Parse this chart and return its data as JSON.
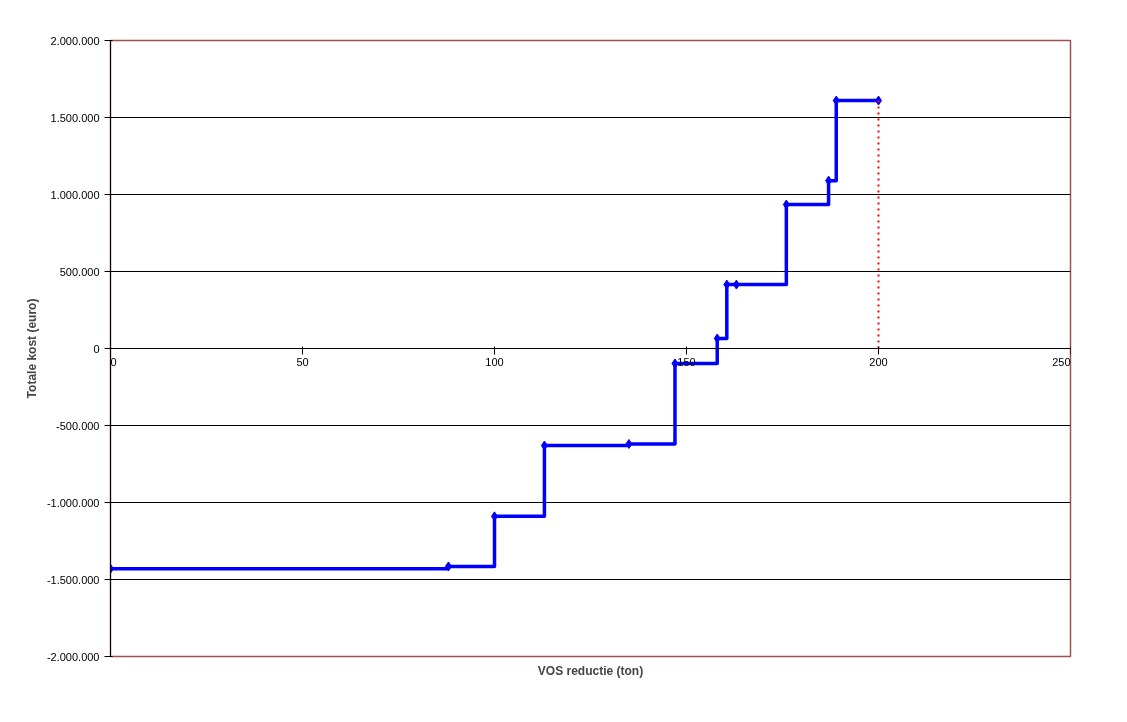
{
  "chart_data": {
    "type": "step",
    "xlabel": "VOS reductie (ton)",
    "ylabel": "Totale kost (euro)",
    "xlim": [
      0,
      250
    ],
    "xticks": [
      0,
      50,
      100,
      150,
      200,
      250
    ],
    "ylim": [
      -2000000,
      2000000
    ],
    "yticks": [
      {
        "value": -2000000,
        "label": "-2.000.000"
      },
      {
        "value": -1500000,
        "label": "-1.500.000"
      },
      {
        "value": -1000000,
        "label": "-1.000.000"
      },
      {
        "value": -500000,
        "label": "-500.000"
      },
      {
        "value": 0,
        "label": "0"
      },
      {
        "value": 500000,
        "label": "500.000"
      },
      {
        "value": 1000000,
        "label": "1.000.000"
      },
      {
        "value": 1500000,
        "label": "1.500.000"
      },
      {
        "value": 2000000,
        "label": "2.000.000"
      }
    ],
    "grid": "y",
    "marker": "diamond",
    "line_style": "solid",
    "series": [
      {
        "color": "#0000ff",
        "x": [
          0,
          88,
          100,
          113,
          135,
          147,
          158,
          160.5,
          163,
          176,
          187,
          189,
          200
        ],
        "values": [
          -1430000,
          -1415000,
          -1090000,
          -630000,
          -620000,
          -97000,
          65000,
          415000,
          415000,
          935000,
          1090000,
          1610000,
          1610000
        ]
      },
      {
        "type": "line",
        "color": "#ff0000",
        "marker": "none",
        "line_style": "dotted",
        "x": [
          200,
          200
        ],
        "values": [
          0,
          1610000
        ]
      }
    ]
  }
}
